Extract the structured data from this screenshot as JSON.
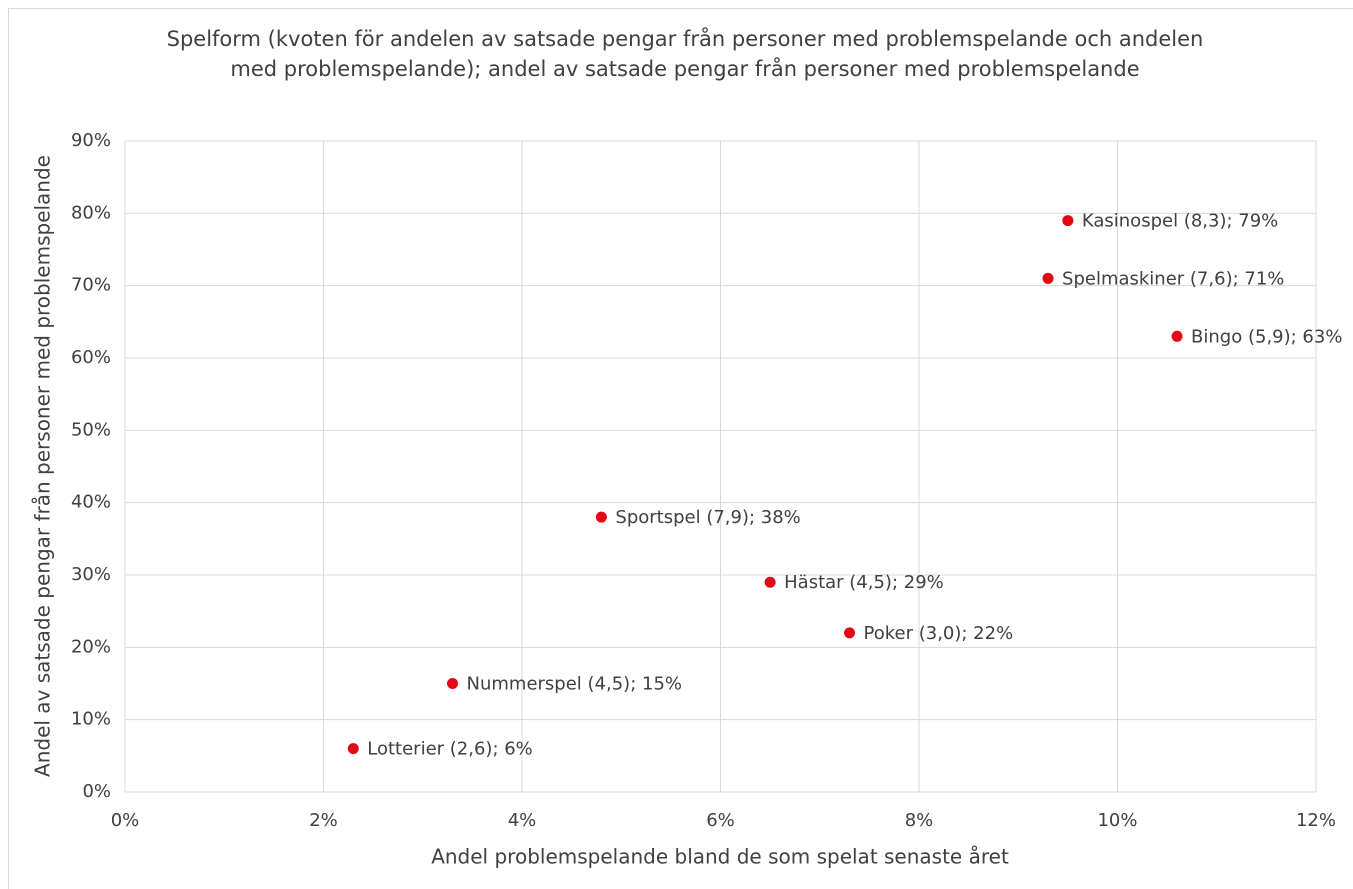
{
  "chart_data": {
    "type": "scatter",
    "title": "Spelform (kvoten för andelen av satsade pengar från personer med problemspelande och andelen med problemspelande); andel av satsade pengar från personer med problemspelande",
    "x_label": "Andel problemspelande bland de som spelat senaste året",
    "y_label": "Andel av satsade pengar från personer med problemspelande",
    "x": [
      9.5,
      9.3,
      10.6,
      4.8,
      6.5,
      7.3,
      3.3,
      2.3
    ],
    "values": [
      79,
      71,
      63,
      38,
      29,
      22,
      15,
      6
    ],
    "value_labels": [
      "Kasinospel (8,3); 79%",
      "Spelmaskiner (7,6); 71%",
      "Bingo (5,9); 63%",
      "Sportspel (7,9); 38%",
      "Hästar (4,5); 29%",
      "Poker (3,0); 22%",
      "Nummerspel (4,5); 15%",
      "Lotterier (2,6); 6%"
    ],
    "color": "#e30613",
    "xlim": [
      0,
      12
    ],
    "xticks": [
      {
        "value": 0,
        "label": "0%"
      },
      {
        "value": 2,
        "label": "2%"
      },
      {
        "value": 4,
        "label": "4%"
      },
      {
        "value": 6,
        "label": "6%"
      },
      {
        "value": 8,
        "label": "8%"
      },
      {
        "value": 10,
        "label": "10%"
      },
      {
        "value": 12,
        "label": "12%"
      }
    ],
    "ylim": [
      0,
      90
    ],
    "yticks": [
      {
        "value": 0,
        "label": "0%"
      },
      {
        "value": 10,
        "label": "10%"
      },
      {
        "value": 20,
        "label": "20%"
      },
      {
        "value": 30,
        "label": "30%"
      },
      {
        "value": 40,
        "label": "40%"
      },
      {
        "value": 50,
        "label": "50%"
      },
      {
        "value": 60,
        "label": "60%"
      },
      {
        "value": 70,
        "label": "70%"
      },
      {
        "value": 80,
        "label": "80%"
      },
      {
        "value": 90,
        "label": "90%"
      }
    ],
    "grid": true
  }
}
